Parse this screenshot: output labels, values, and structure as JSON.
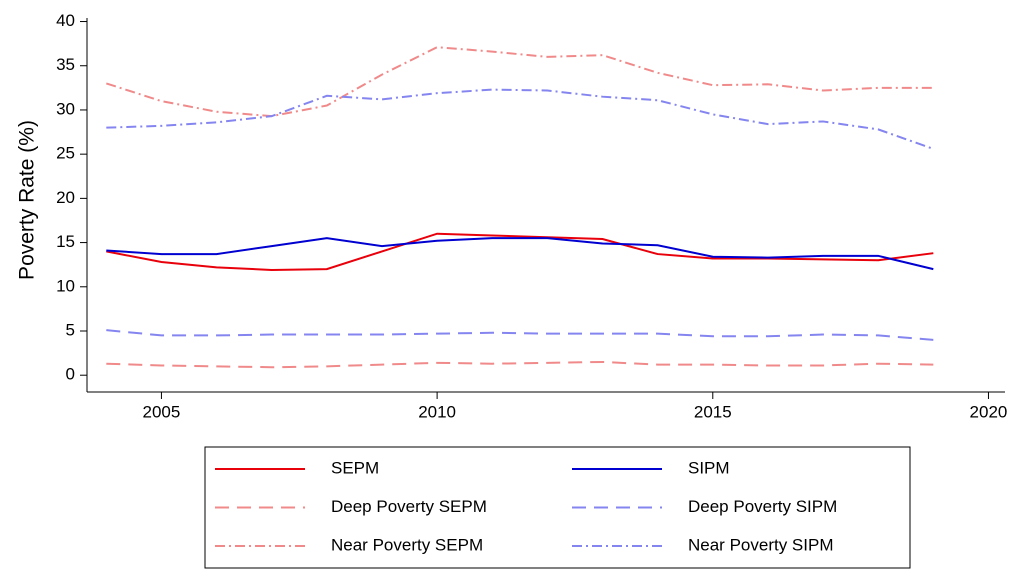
{
  "chart_data": {
    "type": "line",
    "y_label": "Poverty Rate (%)",
    "x": [
      2004,
      2005,
      2006,
      2007,
      2008,
      2009,
      2010,
      2011,
      2012,
      2013,
      2014,
      2015,
      2016,
      2017,
      2018,
      2019
    ],
    "xlim": [
      2003.65,
      2020.3
    ],
    "xticks": [
      2005,
      2010,
      2015,
      2020
    ],
    "ylim": [
      -1.9,
      40.4
    ],
    "yticks": [
      0,
      5,
      10,
      15,
      20,
      25,
      30,
      35,
      40
    ],
    "series": [
      {
        "name": "SEPM",
        "color": "#e8000b",
        "linestyle": "solid",
        "values": [
          14.0,
          12.8,
          12.2,
          11.9,
          12.0,
          14.0,
          16.0,
          15.8,
          15.6,
          15.4,
          13.7,
          13.2,
          13.2,
          13.1,
          13.0,
          13.8
        ]
      },
      {
        "name": "SIPM",
        "color": "#0000d0",
        "linestyle": "solid",
        "values": [
          14.1,
          13.7,
          13.7,
          14.6,
          15.5,
          14.6,
          15.2,
          15.5,
          15.5,
          14.9,
          14.7,
          13.4,
          13.3,
          13.5,
          13.5,
          12.0
        ]
      },
      {
        "name": "Deep Poverty SEPM",
        "color": "#f08a8a",
        "linestyle": "dashed",
        "values": [
          1.3,
          1.1,
          1.0,
          0.9,
          1.0,
          1.2,
          1.4,
          1.3,
          1.4,
          1.5,
          1.2,
          1.2,
          1.1,
          1.1,
          1.3,
          1.2
        ]
      },
      {
        "name": "Deep Poverty SIPM",
        "color": "#8585f0",
        "linestyle": "dashed",
        "values": [
          5.1,
          4.5,
          4.5,
          4.6,
          4.6,
          4.6,
          4.7,
          4.8,
          4.7,
          4.7,
          4.7,
          4.4,
          4.4,
          4.6,
          4.5,
          4.0
        ]
      },
      {
        "name": "Near Poverty SEPM",
        "color": "#f08a8a",
        "linestyle": "dashdot",
        "values": [
          33.0,
          31.0,
          29.8,
          29.3,
          30.5,
          34.0,
          37.1,
          36.6,
          36.0,
          36.2,
          34.2,
          32.8,
          32.9,
          32.2,
          32.5,
          32.5
        ]
      },
      {
        "name": "Near Poverty SIPM",
        "color": "#8585f0",
        "linestyle": "dashdot",
        "values": [
          28.0,
          28.2,
          28.6,
          29.3,
          31.6,
          31.2,
          31.9,
          32.3,
          32.2,
          31.5,
          31.1,
          29.5,
          28.4,
          28.7,
          27.8,
          25.6
        ]
      }
    ]
  }
}
